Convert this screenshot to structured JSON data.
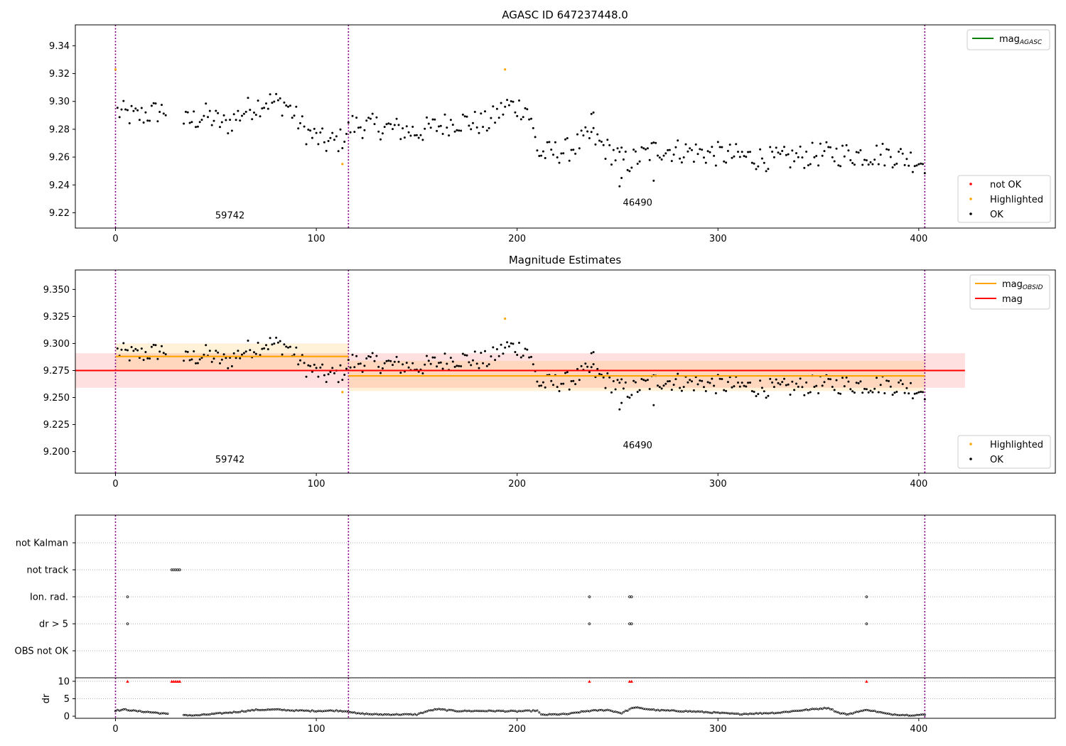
{
  "chart_data": [
    {
      "type": "scatter",
      "title": "AGASC ID 647237448.0",
      "xlabel": "",
      "ylabel": "",
      "xlim": [
        -20,
        468
      ],
      "ylim": [
        9.209,
        9.355
      ],
      "xticks": [
        0,
        100,
        200,
        300,
        400
      ],
      "xtick_labels": [
        "0",
        "100",
        "200",
        "300",
        "400"
      ],
      "yticks": [
        9.22,
        9.24,
        9.26,
        9.28,
        9.3,
        9.32,
        9.34
      ],
      "ytick_labels": [
        "9.22",
        "9.24",
        "9.26",
        "9.28",
        "9.30",
        "9.32",
        "9.34"
      ],
      "obsid_boundaries": [
        0,
        116,
        403
      ],
      "obsid_labels": [
        {
          "text": "59742",
          "x": 57,
          "y": 9.216
        },
        {
          "text": "46490",
          "x": 260,
          "y": 9.225
        }
      ],
      "legend_top": {
        "position": "upper-right",
        "entries": [
          {
            "label": "mag",
            "sub": "AGASC",
            "color": "#008000"
          }
        ]
      },
      "legend_bottom": {
        "position": "lower-right",
        "entries": [
          {
            "label": "not OK",
            "color": "#ff0000"
          },
          {
            "label": "Highlighted",
            "color": "#ffa500"
          },
          {
            "label": "OK",
            "color": "#000000"
          }
        ]
      },
      "series": [
        {
          "name": "OK",
          "color": "#000000"
        },
        {
          "name": "Highlighted",
          "color": "#ffa500",
          "x": [
            0,
            113,
            194
          ],
          "y": [
            9.323,
            9.255,
            9.323
          ]
        }
      ]
    },
    {
      "type": "scatter",
      "title": "Magnitude Estimates",
      "xlabel": "",
      "ylabel": "",
      "xlim": [
        -20,
        468
      ],
      "ylim": [
        9.18,
        9.368
      ],
      "xticks": [
        0,
        100,
        200,
        300,
        400
      ],
      "xtick_labels": [
        "0",
        "100",
        "200",
        "300",
        "400"
      ],
      "yticks": [
        9.2,
        9.225,
        9.25,
        9.275,
        9.3,
        9.325,
        9.35
      ],
      "ytick_labels": [
        "9.200",
        "9.225",
        "9.250",
        "9.275",
        "9.300",
        "9.325",
        "9.350"
      ],
      "obsid_boundaries": [
        0,
        116,
        403
      ],
      "obsid_labels": [
        {
          "text": "59742",
          "x": 57,
          "y": 9.19
        },
        {
          "text": "46490",
          "x": 260,
          "y": 9.203
        }
      ],
      "mag": {
        "value": 9.275,
        "band": [
          9.259,
          9.291
        ],
        "x_range": [
          -20,
          423
        ],
        "color": "#ff0000"
      },
      "mag_obsid": [
        {
          "x_range": [
            0,
            116
          ],
          "value": 9.288,
          "band": [
            9.276,
            9.3
          ]
        },
        {
          "x_range": [
            116,
            403
          ],
          "value": 9.27,
          "band": [
            9.256,
            9.284
          ]
        }
      ],
      "legend_top": {
        "position": "upper-right",
        "entries": [
          {
            "label": "mag",
            "sub": "OBSID",
            "color": "#ffa500"
          },
          {
            "label": "mag",
            "sub": "",
            "color": "#ff0000"
          }
        ]
      },
      "legend_bottom": {
        "position": "lower-right",
        "entries": [
          {
            "label": "Highlighted",
            "color": "#ffa500"
          },
          {
            "label": "OK",
            "color": "#000000"
          }
        ]
      },
      "series": [
        {
          "name": "OK",
          "color": "#000000"
        },
        {
          "name": "Highlighted",
          "color": "#ffa500",
          "x": [
            113,
            194
          ],
          "y": [
            9.255,
            9.323
          ]
        }
      ]
    },
    {
      "type": "scatter",
      "title": "",
      "flag_categories": [
        "not Kalman",
        "not track",
        "Ion. rad.",
        "dr > 5",
        "OBS not OK"
      ],
      "flags": {
        "not track": [
          28,
          29,
          30,
          31,
          32
        ],
        "Ion. rad.": [
          6,
          236,
          256,
          257,
          374
        ],
        "dr > 5": [
          6,
          236,
          256,
          257,
          374
        ]
      },
      "obsid_boundaries": [
        0,
        116,
        403
      ],
      "xlim": [
        -20,
        468
      ],
      "xticks": [
        0,
        100,
        200,
        300,
        400
      ],
      "xtick_labels": [
        "0",
        "100",
        "200",
        "300",
        "400"
      ]
    },
    {
      "type": "scatter",
      "title": "",
      "ylabel": "dr",
      "xlim": [
        -20,
        468
      ],
      "ylim": [
        -0.6,
        11
      ],
      "yticks": [
        0,
        5,
        10
      ],
      "ytick_labels": [
        "0",
        "5",
        "10"
      ],
      "xticks": [
        0,
        100,
        200,
        300,
        400
      ],
      "xtick_labels": [
        "0",
        "100",
        "200",
        "300",
        "400"
      ],
      "obsid_boundaries": [
        0,
        116,
        403
      ],
      "clipped_points": {
        "color": "#ff0000",
        "x": [
          6,
          28,
          29,
          30,
          31,
          32,
          236,
          256,
          257,
          374
        ],
        "y": [
          10,
          10,
          10,
          10,
          10,
          10,
          10,
          10,
          10,
          10
        ]
      },
      "series": [
        {
          "name": "dr",
          "color": "#000000",
          "x_range": [
            0,
            403
          ],
          "y_profile": [
            [
              0,
              1.6
            ],
            [
              5,
              1.9
            ],
            [
              10,
              1.5
            ],
            [
              20,
              1.0
            ],
            [
              26,
              0.6
            ],
            [
              28,
              1.0
            ],
            [
              33,
              0.4
            ],
            [
              40,
              0.2
            ],
            [
              50,
              0.7
            ],
            [
              60,
              1.2
            ],
            [
              70,
              1.8
            ],
            [
              80,
              1.9
            ],
            [
              90,
              1.6
            ],
            [
              100,
              1.5
            ],
            [
              110,
              1.6
            ],
            [
              116,
              1.4
            ],
            [
              120,
              0.8
            ],
            [
              130,
              0.5
            ],
            [
              150,
              0.5
            ],
            [
              155,
              1.4
            ],
            [
              160,
              2.0
            ],
            [
              170,
              1.5
            ],
            [
              190,
              1.5
            ],
            [
              200,
              1.4
            ],
            [
              210,
              1.6
            ],
            [
              212,
              0.4
            ],
            [
              225,
              0.6
            ],
            [
              235,
              1.5
            ],
            [
              245,
              1.8
            ],
            [
              252,
              0.9
            ],
            [
              258,
              2.5
            ],
            [
              270,
              1.7
            ],
            [
              290,
              1.3
            ],
            [
              310,
              0.6
            ],
            [
              330,
              1.0
            ],
            [
              340,
              1.6
            ],
            [
              355,
              2.4
            ],
            [
              360,
              1.0
            ],
            [
              365,
              0.5
            ],
            [
              370,
              1.4
            ],
            [
              375,
              1.8
            ],
            [
              385,
              0.6
            ],
            [
              395,
              0.3
            ],
            [
              403,
              0.4
            ]
          ]
        }
      ]
    }
  ]
}
